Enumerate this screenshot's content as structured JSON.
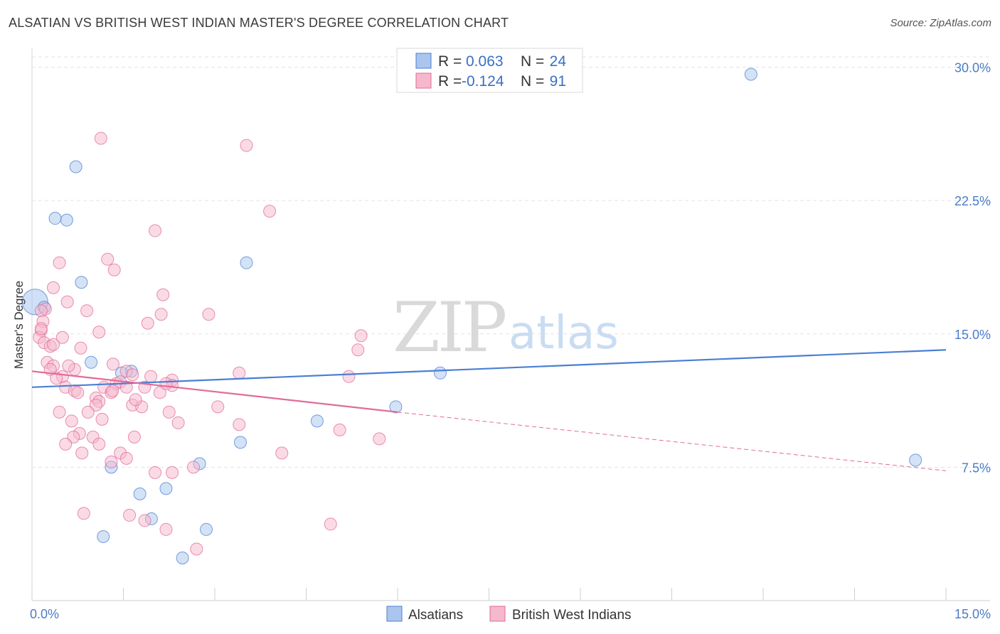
{
  "title": "ALSATIAN VS BRITISH WEST INDIAN MASTER'S DEGREE CORRELATION CHART",
  "source": "Source: ZipAtlas.com",
  "watermark": {
    "part1": "ZIP",
    "part2": "atlas"
  },
  "colors": {
    "blue": "#4a7fd4",
    "blue_fill": "#aac6ee",
    "pink": "#e06b9a",
    "pink_fill": "#f5b8cc",
    "grid": "#e3e3e3",
    "axis_text": "#4a7cc9"
  },
  "legend": {
    "rows": [
      {
        "r_label": "R =",
        "r_value": "0.063",
        "n_label": "N =",
        "n_value": "24",
        "series": "blue"
      },
      {
        "r_label": "R =",
        "r_value": "-0.124",
        "n_label": "N =",
        "n_value": "91",
        "series": "pink"
      }
    ]
  },
  "chart_data": {
    "type": "scatter",
    "xlabel": "",
    "ylabel": "Master's Degree",
    "xlim": [
      0,
      15
    ],
    "ylim": [
      0,
      31.5
    ],
    "x_tick_labels": [
      {
        "value": 0,
        "label": "0.0%"
      },
      {
        "value": 15,
        "label": "15.0%"
      }
    ],
    "y_tick_labels": [
      {
        "value": 7.5,
        "label": "7.5%"
      },
      {
        "value": 15,
        "label": "15.0%"
      },
      {
        "value": 22.5,
        "label": "22.5%"
      },
      {
        "value": 30,
        "label": "30.0%"
      }
    ],
    "grid": "horizontal dashed",
    "legend_placement": "top-center",
    "series": [
      {
        "name": "Alsatians",
        "color": "#4a7fd4",
        "trend": {
          "x0": 0,
          "y0": 12.0,
          "x1": 15,
          "y1": 14.1
        },
        "points": [
          [
            0.05,
            16.8
          ],
          [
            0.2,
            16.5
          ],
          [
            0.72,
            24.4
          ],
          [
            0.38,
            21.5
          ],
          [
            0.57,
            21.4
          ],
          [
            0.81,
            17.9
          ],
          [
            3.52,
            19.0
          ],
          [
            11.8,
            29.6
          ],
          [
            0.97,
            13.4
          ],
          [
            1.63,
            12.9
          ],
          [
            1.47,
            12.8
          ],
          [
            6.7,
            12.8
          ],
          [
            5.97,
            10.9
          ],
          [
            4.68,
            10.1
          ],
          [
            3.42,
            8.9
          ],
          [
            1.3,
            7.5
          ],
          [
            2.75,
            7.7
          ],
          [
            2.2,
            6.3
          ],
          [
            1.77,
            6.0
          ],
          [
            1.96,
            4.6
          ],
          [
            1.17,
            3.6
          ],
          [
            2.86,
            4.0
          ],
          [
            2.47,
            2.4
          ],
          [
            14.5,
            7.9
          ]
        ]
      },
      {
        "name": "British West Indians",
        "color": "#e06b9a",
        "trend": {
          "x0": 0,
          "y0": 12.9,
          "x1": 6,
          "y1": 10.6
        },
        "trend_extension": {
          "x0": 6,
          "y0": 10.6,
          "x1": 15,
          "y1": 7.3
        },
        "points": [
          [
            1.13,
            26.0
          ],
          [
            3.52,
            25.6
          ],
          [
            3.9,
            21.9
          ],
          [
            2.02,
            20.8
          ],
          [
            1.24,
            19.2
          ],
          [
            0.45,
            19.0
          ],
          [
            1.35,
            18.6
          ],
          [
            0.35,
            17.6
          ],
          [
            2.15,
            17.2
          ],
          [
            0.58,
            16.8
          ],
          [
            0.9,
            16.3
          ],
          [
            0.22,
            16.4
          ],
          [
            2.12,
            16.1
          ],
          [
            2.9,
            16.1
          ],
          [
            0.15,
            16.3
          ],
          [
            0.18,
            15.7
          ],
          [
            1.9,
            15.6
          ],
          [
            1.1,
            15.1
          ],
          [
            0.15,
            15.2
          ],
          [
            0.12,
            14.8
          ],
          [
            0.5,
            14.8
          ],
          [
            5.4,
            14.9
          ],
          [
            0.2,
            14.5
          ],
          [
            0.3,
            14.3
          ],
          [
            0.8,
            14.2
          ],
          [
            0.35,
            14.4
          ],
          [
            5.35,
            14.1
          ],
          [
            0.25,
            13.4
          ],
          [
            0.35,
            13.2
          ],
          [
            0.3,
            13.0
          ],
          [
            0.7,
            13.0
          ],
          [
            1.33,
            13.3
          ],
          [
            1.55,
            12.9
          ],
          [
            0.5,
            12.6
          ],
          [
            1.65,
            12.7
          ],
          [
            1.95,
            12.6
          ],
          [
            2.3,
            12.4
          ],
          [
            3.4,
            12.8
          ],
          [
            5.2,
            12.6
          ],
          [
            1.38,
            12.2
          ],
          [
            1.45,
            12.3
          ],
          [
            1.55,
            12.0
          ],
          [
            0.55,
            12.0
          ],
          [
            0.7,
            11.8
          ],
          [
            1.18,
            12.0
          ],
          [
            1.3,
            11.7
          ],
          [
            1.32,
            11.8
          ],
          [
            0.75,
            11.7
          ],
          [
            1.85,
            12.0
          ],
          [
            2.1,
            11.7
          ],
          [
            2.3,
            12.1
          ],
          [
            1.05,
            11.4
          ],
          [
            1.1,
            11.2
          ],
          [
            1.05,
            11.0
          ],
          [
            1.65,
            11.0
          ],
          [
            1.8,
            10.9
          ],
          [
            2.25,
            10.6
          ],
          [
            3.05,
            10.9
          ],
          [
            0.45,
            10.6
          ],
          [
            0.92,
            10.6
          ],
          [
            0.65,
            10.1
          ],
          [
            1.15,
            10.2
          ],
          [
            2.4,
            10.0
          ],
          [
            3.4,
            9.9
          ],
          [
            0.78,
            9.4
          ],
          [
            0.68,
            9.2
          ],
          [
            1.0,
            9.2
          ],
          [
            1.68,
            9.2
          ],
          [
            5.05,
            9.6
          ],
          [
            5.7,
            9.1
          ],
          [
            0.55,
            8.8
          ],
          [
            1.1,
            8.8
          ],
          [
            0.82,
            8.3
          ],
          [
            1.45,
            8.3
          ],
          [
            1.55,
            8.0
          ],
          [
            1.3,
            7.8
          ],
          [
            2.65,
            7.5
          ],
          [
            4.1,
            8.3
          ],
          [
            2.02,
            7.2
          ],
          [
            2.3,
            7.2
          ],
          [
            0.85,
            4.9
          ],
          [
            1.6,
            4.8
          ],
          [
            1.85,
            4.5
          ],
          [
            2.2,
            4.0
          ],
          [
            4.9,
            4.3
          ],
          [
            2.7,
            2.9
          ],
          [
            0.6,
            13.2
          ],
          [
            0.15,
            15.3
          ],
          [
            2.2,
            12.2
          ],
          [
            1.7,
            11.3
          ],
          [
            0.4,
            12.5
          ]
        ]
      }
    ]
  },
  "bottom_legend": [
    {
      "label": "Alsatians",
      "series": "blue"
    },
    {
      "label": "British West Indians",
      "series": "pink"
    }
  ]
}
